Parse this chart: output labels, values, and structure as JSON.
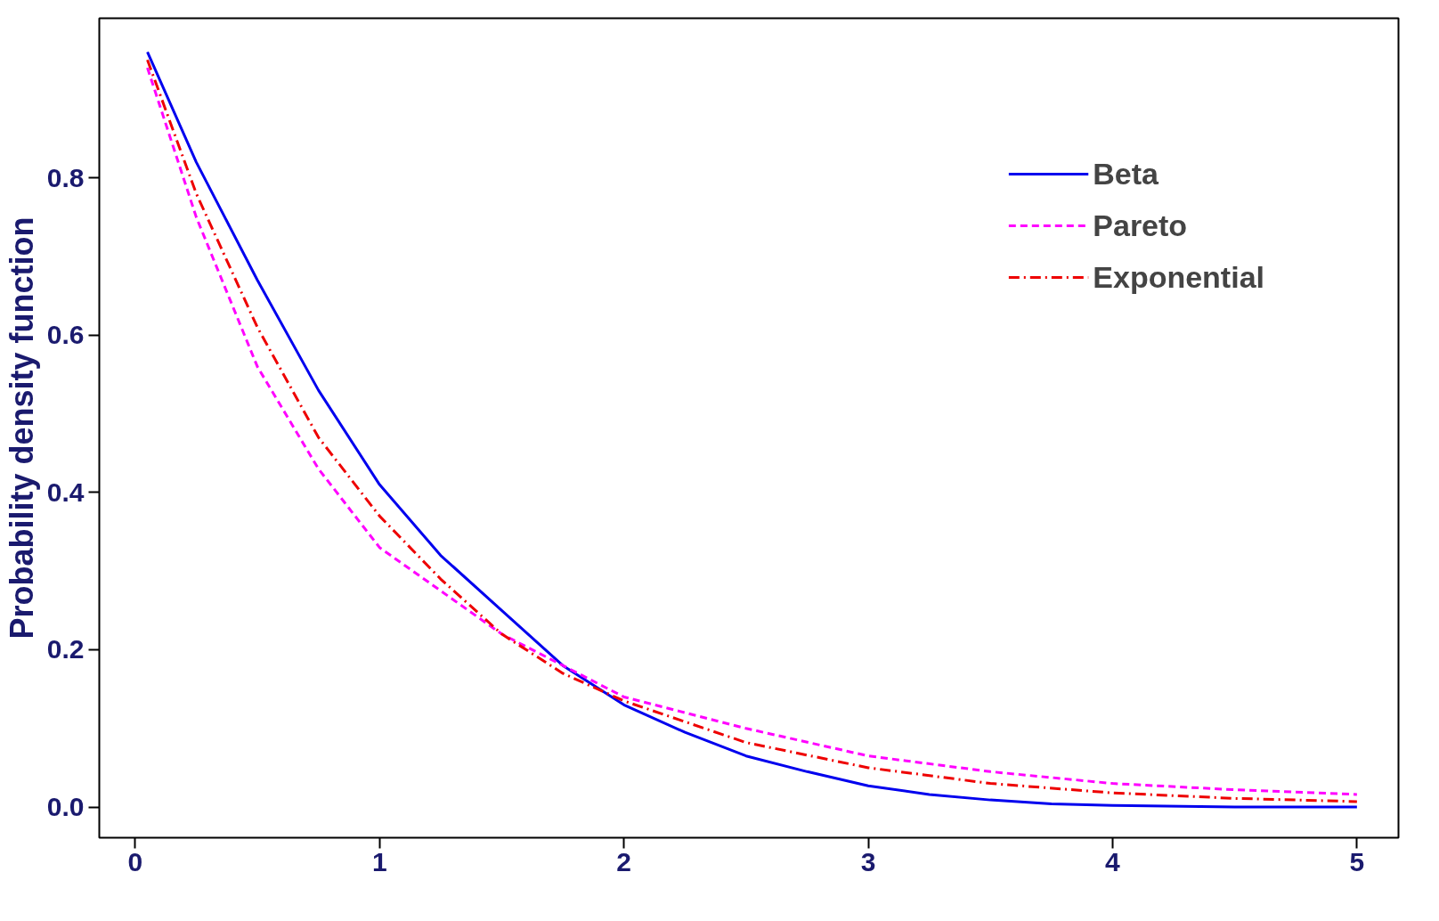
{
  "chart_data": {
    "type": "line",
    "ylabel": "Probability density function",
    "xlim": [
      -0.147,
      5.17
    ],
    "ylim": [
      -0.039,
      1.003
    ],
    "xticks": [
      0,
      1,
      2,
      3,
      4,
      5
    ],
    "yticks": [
      {
        "value": 0,
        "label": "0.0"
      },
      0.2,
      0.4,
      0.6,
      0.8
    ],
    "grid": false,
    "legend": "top right",
    "marker": "none",
    "series": [
      {
        "name": "Beta",
        "color": "#0000ee",
        "line_style": "solid",
        "x": [
          0.05,
          0.25,
          0.5,
          0.75,
          1,
          1.25,
          1.5,
          1.75,
          2,
          2.25,
          2.5,
          2.75,
          3,
          3.25,
          3.5,
          3.75,
          4,
          4.5,
          5
        ],
        "values": [
          0.96,
          0.82,
          0.67,
          0.53,
          0.41,
          0.32,
          0.25,
          0.18,
          0.13,
          0.095,
          0.065,
          0.045,
          0.027,
          0.016,
          0.009,
          0.004,
          0.002,
          0.0,
          0.0
        ]
      },
      {
        "name": "Pareto",
        "color": "#ff00ff",
        "line_style": "dashed",
        "x": [
          0.05,
          0.25,
          0.5,
          0.75,
          1,
          1.5,
          2,
          2.5,
          3,
          3.5,
          4,
          4.5,
          5
        ],
        "values": [
          0.94,
          0.75,
          0.56,
          0.43,
          0.33,
          0.22,
          0.14,
          0.1,
          0.065,
          0.045,
          0.03,
          0.022,
          0.016
        ]
      },
      {
        "name": "Exponential",
        "color": "#ee0000",
        "line_style": "dashdot",
        "x": [
          0.05,
          0.25,
          0.5,
          0.75,
          1,
          1.25,
          1.5,
          1.75,
          2,
          2.5,
          3,
          3.5,
          4,
          4.5,
          5
        ],
        "values": [
          0.95,
          0.78,
          0.61,
          0.47,
          0.37,
          0.29,
          0.22,
          0.17,
          0.135,
          0.082,
          0.05,
          0.03,
          0.018,
          0.011,
          0.007
        ]
      }
    ]
  }
}
